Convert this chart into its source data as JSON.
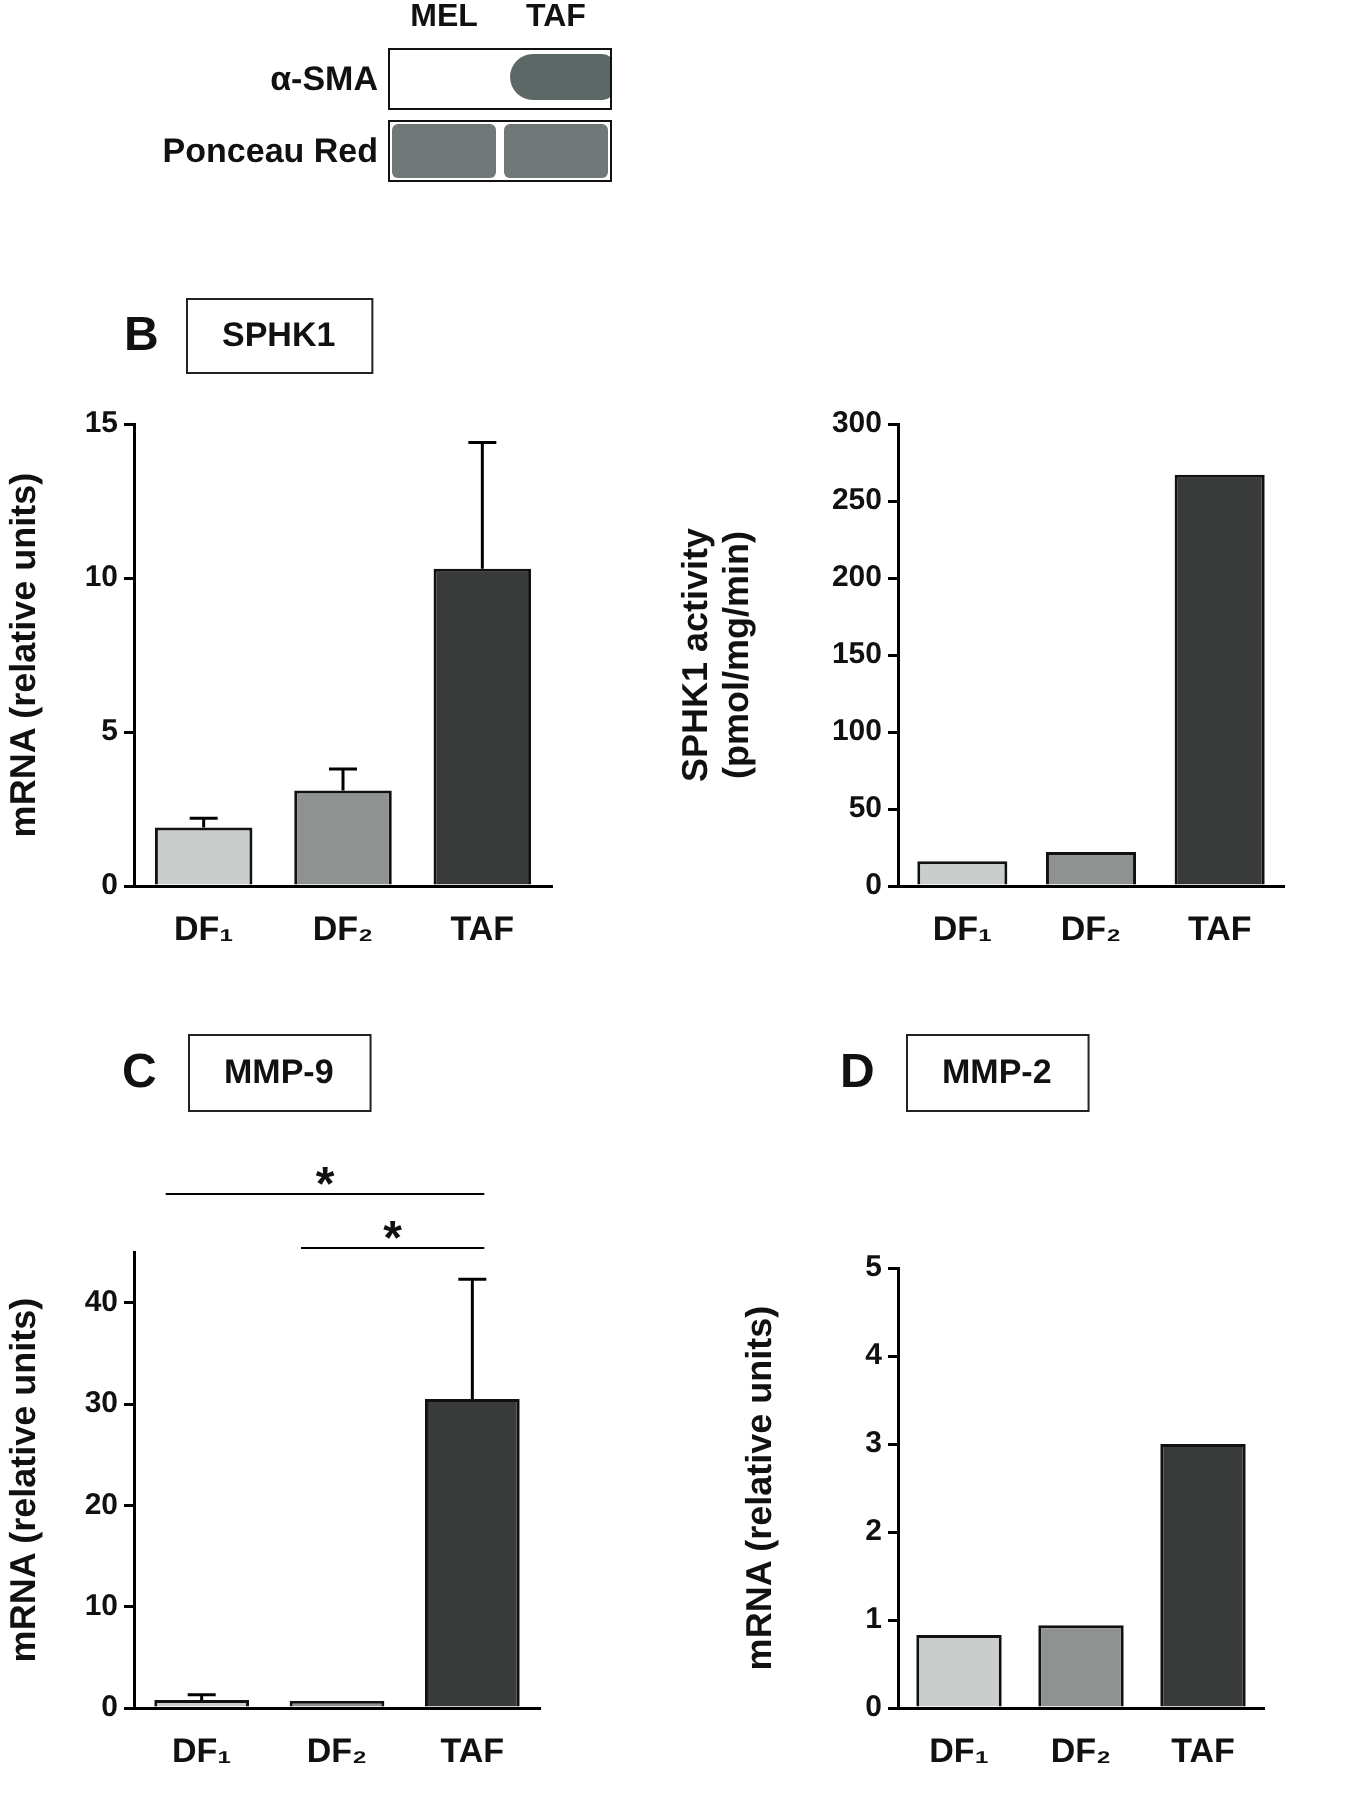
{
  "chart_data": [
    {
      "type": "other",
      "categories": [
        "MEL",
        "TAF"
      ],
      "y_categories": [
        "α-SMA",
        "Ponceau Red"
      ]
    },
    {
      "type": "bar",
      "title": "SPHK1",
      "annotations": [
        "B"
      ],
      "ylabel": "mRNA (relative units)",
      "categories": [
        "DF₁",
        "DF₂",
        "TAF"
      ],
      "values": [
        1.9,
        3.1,
        10.3
      ],
      "errors": [
        [
          1.9,
          2.2
        ],
        [
          3.1,
          3.8
        ],
        [
          10.3,
          14.4
        ]
      ],
      "colors": [
        "#c9cdcc",
        "#8e9290",
        "#393b3b"
      ],
      "ylim": [
        0,
        15
      ],
      "yticks": [
        0,
        5,
        10,
        15
      ]
    },
    {
      "type": "bar",
      "ylabel": "SPHK1 activity\n(pmol/mg/min)",
      "categories": [
        "DF₁",
        "DF₂",
        "TAF"
      ],
      "values": [
        16,
        22,
        267
      ],
      "colors": [
        "#c9cdcc",
        "#8e9290",
        "#393b3b"
      ],
      "ylim": [
        0,
        300
      ],
      "yticks": [
        0,
        50,
        100,
        150,
        200,
        250,
        300
      ]
    },
    {
      "type": "bar",
      "title": "MMP-9",
      "annotations": [
        "C",
        "*",
        "*"
      ],
      "ylabel": "mRNA (relative units)",
      "categories": [
        "DF₁",
        "DF₂",
        "TAF"
      ],
      "values": [
        0.8,
        0.7,
        30.5
      ],
      "errors": [
        [
          0.8,
          1.3
        ],
        null,
        [
          30.5,
          42.3
        ]
      ],
      "colors": [
        "#c9cdcc",
        "#8e9290",
        "#393b3b"
      ],
      "ylim": [
        0,
        45
      ],
      "yticks": [
        0,
        10,
        20,
        30,
        40
      ]
    },
    {
      "type": "bar",
      "title": "MMP-2",
      "annotations": [
        "D"
      ],
      "ylabel": "mRNA (relative units)",
      "categories": [
        "DF₁",
        "DF₂",
        "TAF"
      ],
      "values": [
        0.83,
        0.94,
        3.0
      ],
      "colors": [
        "#c9cdcc",
        "#8e9290",
        "#393b3b"
      ],
      "ylim": [
        0,
        5
      ],
      "yticks": [
        0,
        1,
        2,
        3,
        4,
        5
      ]
    }
  ]
}
